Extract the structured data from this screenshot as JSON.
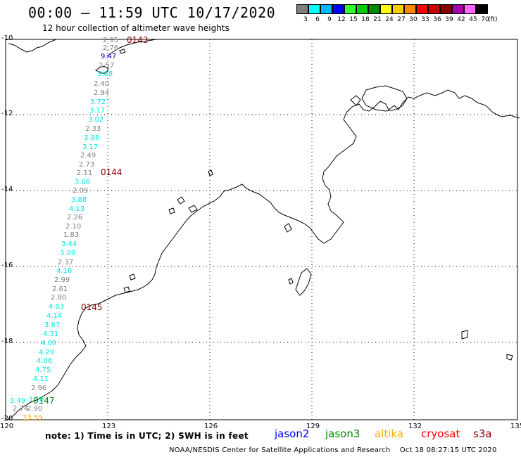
{
  "header": {
    "title": "00:00 – 11:59 UTC 10/17/2020",
    "subtitle": "12 hour collection of altimeter wave heights"
  },
  "colorbar": {
    "unit": "(ft)",
    "swatches": [
      {
        "label": "3",
        "color": "#7f7f7f"
      },
      {
        "label": "6",
        "color": "#00ffff"
      },
      {
        "label": "9",
        "color": "#00b8ff"
      },
      {
        "label": "12",
        "color": "#0000ff"
      },
      {
        "label": "15",
        "color": "#33ff33"
      },
      {
        "label": "18",
        "color": "#00cc00"
      },
      {
        "label": "21",
        "color": "#008800"
      },
      {
        "label": "24",
        "color": "#ffff00"
      },
      {
        "label": "27",
        "color": "#ffcc00"
      },
      {
        "label": "30",
        "color": "#ff8800"
      },
      {
        "label": "33",
        "color": "#ff0000"
      },
      {
        "label": "36",
        "color": "#cc0000"
      },
      {
        "label": "39",
        "color": "#880000"
      },
      {
        "label": "42",
        "color": "#aa00aa"
      },
      {
        "label": "45",
        "color": "#ff66ff"
      },
      {
        "label": "70",
        "color": "#000000"
      }
    ]
  },
  "axes": {
    "lat_labels": [
      "-10",
      "-12",
      "-14",
      "-16",
      "-18",
      "-20"
    ],
    "lon_labels": [
      "120",
      "123",
      "126",
      "129",
      "132",
      "135"
    ]
  },
  "time_markers": [
    {
      "label": "0143",
      "color": "#880000"
    },
    {
      "label": "0144",
      "color": "#880000"
    },
    {
      "label": "0145",
      "color": "#880000"
    },
    {
      "label": "0147",
      "color": "#008800"
    }
  ],
  "wave_heights": [
    {
      "v": "2.95",
      "c": "#7f7f7f"
    },
    {
      "v": "2.76",
      "c": "#7f7f7f"
    },
    {
      "v": "9.47",
      "c": "#0000cc"
    },
    {
      "v": "2.57",
      "c": "#7f7f7f"
    },
    {
      "v": "3.88",
      "c": "#00e5e5"
    },
    {
      "v": "2.40",
      "c": "#7f7f7f"
    },
    {
      "v": "2.94",
      "c": "#7f7f7f"
    },
    {
      "v": "3.72",
      "c": "#00e5e5"
    },
    {
      "v": "3.17",
      "c": "#00e5e5"
    },
    {
      "v": "3.02",
      "c": "#00e5e5"
    },
    {
      "v": "2.33",
      "c": "#7f7f7f"
    },
    {
      "v": "3.98",
      "c": "#00e5e5"
    },
    {
      "v": "3.17",
      "c": "#00e5e5"
    },
    {
      "v": "2.49",
      "c": "#7f7f7f"
    },
    {
      "v": "2.73",
      "c": "#7f7f7f"
    },
    {
      "v": "2.11",
      "c": "#7f7f7f"
    },
    {
      "v": "3.06",
      "c": "#00e5e5"
    },
    {
      "v": "2.09",
      "c": "#7f7f7f"
    },
    {
      "v": "3.88",
      "c": "#00e5e5"
    },
    {
      "v": "4.13",
      "c": "#00e5e5"
    },
    {
      "v": "2.26",
      "c": "#7f7f7f"
    },
    {
      "v": "2.10",
      "c": "#7f7f7f"
    },
    {
      "v": "1.83",
      "c": "#7f7f7f"
    },
    {
      "v": "3.44",
      "c": "#00e5e5"
    },
    {
      "v": "3.09",
      "c": "#00e5e5"
    },
    {
      "v": "2.37",
      "c": "#7f7f7f"
    },
    {
      "v": "4.16",
      "c": "#00e5e5"
    },
    {
      "v": "2.99",
      "c": "#7f7f7f"
    },
    {
      "v": "2.61",
      "c": "#7f7f7f"
    },
    {
      "v": "2.80",
      "c": "#7f7f7f"
    },
    {
      "v": "4.03",
      "c": "#00e5e5"
    },
    {
      "v": "4.14",
      "c": "#00e5e5"
    },
    {
      "v": "3.67",
      "c": "#00e5e5"
    },
    {
      "v": "4.31",
      "c": "#00e5e5"
    },
    {
      "v": "4.09",
      "c": "#00e5e5"
    },
    {
      "v": "4.29",
      "c": "#00e5e5"
    },
    {
      "v": "4.06",
      "c": "#00e5e5"
    },
    {
      "v": "4.75",
      "c": "#00e5e5"
    },
    {
      "v": "4.11",
      "c": "#00e5e5"
    },
    {
      "v": "2.96",
      "c": "#7f7f7f"
    },
    {
      "v": "3.49",
      "c": "#00e5e5"
    },
    {
      "v": "3.10",
      "c": "#00e5e5"
    },
    {
      "v": "2.74",
      "c": "#7f7f7f"
    },
    {
      "v": "2.90",
      "c": "#7f7f7f"
    },
    {
      "v": "23.59",
      "c": "#ffaa00"
    }
  ],
  "footer": {
    "note": "note: 1) Time is in UTC; 2) SWH is in feet",
    "credit": "NOAA/NESDIS Center for Satellite Applications and Research",
    "timestamp": "Oct 18 08:27:15 UTC 2020",
    "legend": [
      {
        "label": "jason2",
        "color": "#0000ff"
      },
      {
        "label": "jason3",
        "color": "#008800"
      },
      {
        "label": "altika",
        "color": "#ffaa00"
      },
      {
        "label": "cryosat",
        "color": "#ff0000"
      },
      {
        "label": "s3a",
        "color": "#880000"
      }
    ]
  }
}
